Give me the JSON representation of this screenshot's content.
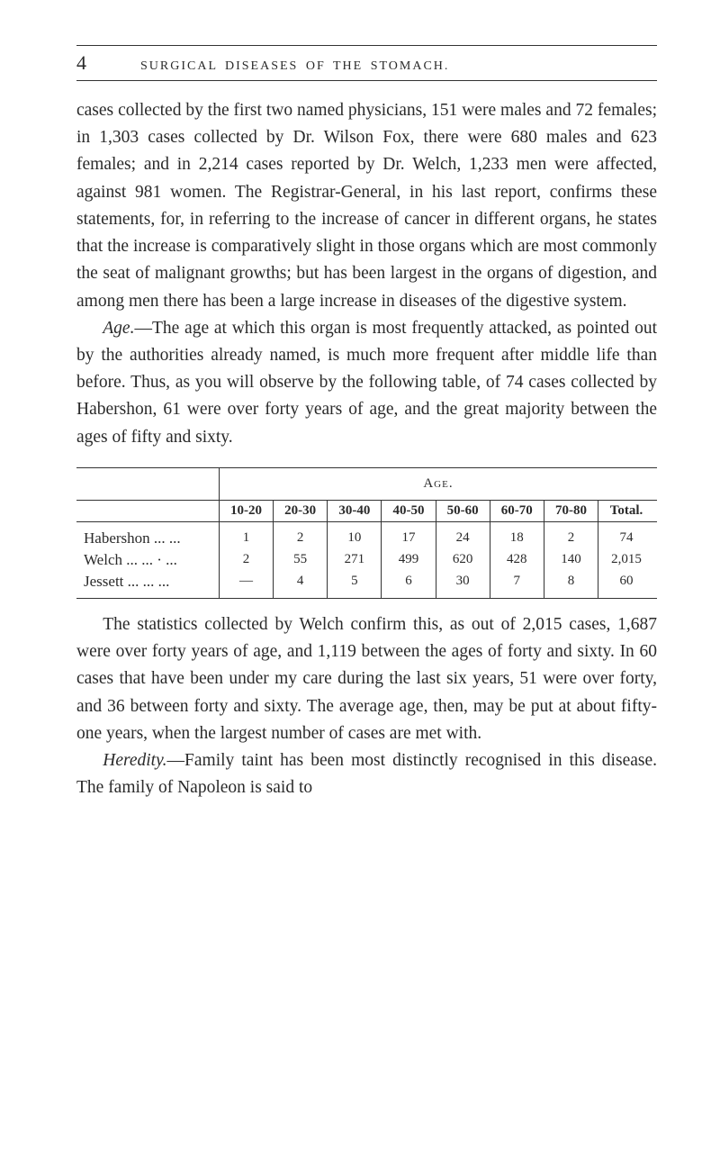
{
  "page_number": "4",
  "running_title": "SURGICAL DISEASES OF THE STOMACH.",
  "paragraphs": {
    "p1": "cases collected by the first two named physicians, 151 were males and 72 females; in 1,303 cases collected by Dr. Wilson Fox, there were 680 males and 623 females; and in 2,214 cases reported by Dr. Welch, 1,233 men were affected, against 981 women. The Registrar-General, in his last report, confirms these statements, for, in referring to the increase of cancer in different organs, he states that the increase is comparatively slight in those organs which are most commonly the seat of malignant growths; but has been largest in the organs of digestion, and among men there has been a large increase in diseases of the digestive system.",
    "p2_italic": "Age.",
    "p2_rest": "—The age at which this organ is most frequently attacked, as pointed out by the authorities already named, is much more frequent after middle life than before. Thus, as you will observe by the following table, of 74 cases collected by Habershon, 61 were over forty years of age, and the great majority between the ages of fifty and sixty.",
    "p3": "The statistics collected by Welch confirm this, as out of 2,015 cases, 1,687 were over forty years of age, and 1,119 between the ages of forty and sixty. In 60 cases that have been under my care during the last six years, 51 were over forty, and 36 between forty and sixty. The average age, then, may be put at about fifty-one years, when the largest number of cases are met with.",
    "p4_italic": "Heredity.",
    "p4_rest": "—Family taint has been most distinctly recognised in this disease. The family of Napoleon is said to"
  },
  "table": {
    "age_label": "Age.",
    "columns": [
      "10-20",
      "20-30",
      "30-40",
      "40-50",
      "50-60",
      "60-70",
      "70-80",
      "Total."
    ],
    "rows": [
      {
        "label": "Habershon    ...     ...",
        "values": [
          "1",
          "2",
          "10",
          "17",
          "24",
          "18",
          "2",
          "74"
        ]
      },
      {
        "label": "Welch    ...       ...  · ...",
        "values": [
          "2",
          "55",
          "271",
          "499",
          "620",
          "428",
          "140",
          "2,015"
        ]
      },
      {
        "label": "Jessett  ...        ...     ...",
        "values": [
          "—",
          "4",
          "5",
          "6",
          "30",
          "7",
          "8",
          "60"
        ]
      }
    ]
  }
}
